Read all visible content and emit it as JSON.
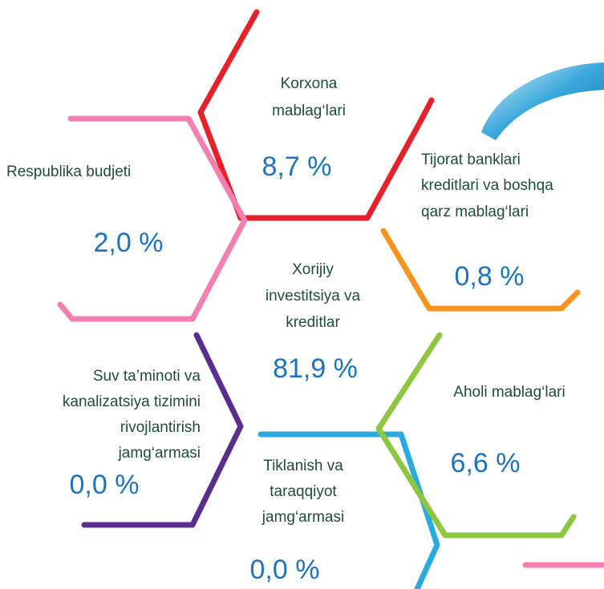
{
  "segments": [
    {
      "label": [
        "Korxona",
        "mablag‘lari"
      ],
      "value": "8,7 %"
    },
    {
      "label": [
        "Respublika budjeti"
      ],
      "value": "2,0 %"
    },
    {
      "label": [
        "Tijorat banklari",
        "kreditlari va boshqa",
        "qarz mablag‘lari"
      ],
      "value": "0,8 %"
    },
    {
      "label": [
        "Xorijiy",
        "investitsiya va",
        "kreditlar"
      ],
      "value": "81,9 %"
    },
    {
      "label": [
        "Suv ta’minoti va",
        "kanalizatsiya tizimini",
        "rivojlantirish",
        "jamg‘armasi"
      ],
      "value": "0,0 %"
    },
    {
      "label": [
        "Aholi mablag‘lari"
      ],
      "value": "6,6 %"
    },
    {
      "label": [
        "Tiklanish va",
        "taraqqiyot",
        "jamg‘armasi"
      ],
      "value": "0,0 %"
    }
  ]
}
